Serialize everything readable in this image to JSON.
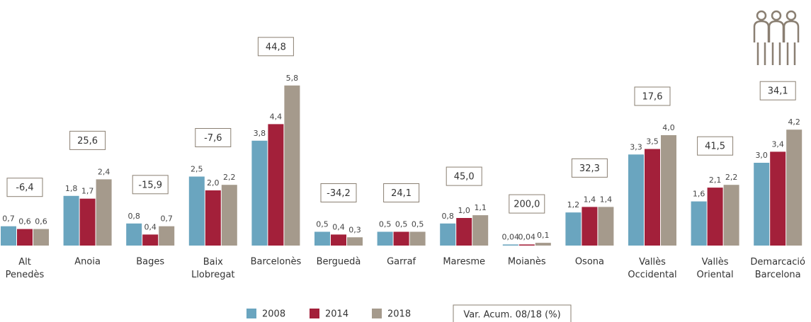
{
  "chart_data": {
    "type": "bar",
    "categories": [
      "Alt Penedès",
      "Anoia",
      "Bages",
      "Baix Llobregat",
      "Barcelonès",
      "Berguedà",
      "Garraf",
      "Maresme",
      "Moianès",
      "Osona",
      "Vallès Occidental",
      "Vallès Oriental",
      "Demarcació Barcelona"
    ],
    "series": [
      {
        "name": "2008",
        "color": "#6aa5bf",
        "values": [
          0.7,
          1.8,
          0.8,
          2.5,
          3.8,
          0.5,
          0.5,
          0.8,
          0.04,
          1.2,
          3.3,
          1.6,
          3.0
        ],
        "value_labels": [
          "0,7",
          "1,8",
          "0,8",
          "2,5",
          "3,8",
          "0,5",
          "0,5",
          "0,8",
          "0,04",
          "1,2",
          "3,3",
          "1,6",
          "3,0"
        ]
      },
      {
        "name": "2014",
        "color": "#a3203a",
        "values": [
          0.6,
          1.7,
          0.4,
          2.0,
          4.4,
          0.4,
          0.5,
          1.0,
          0.04,
          1.4,
          3.5,
          2.1,
          3.4
        ],
        "value_labels": [
          "0,6",
          "1,7",
          "0,4",
          "2,0",
          "4,4",
          "0,4",
          "0,5",
          "1,0",
          "0,04",
          "1,4",
          "3,5",
          "2,1",
          "3,4"
        ]
      },
      {
        "name": "2018",
        "color": "#a59a8c",
        "values": [
          0.6,
          2.4,
          0.7,
          2.2,
          5.8,
          0.3,
          0.5,
          1.1,
          0.1,
          1.4,
          4.0,
          2.2,
          4.2
        ],
        "value_labels": [
          "0,6",
          "2,4",
          "0,7",
          "2,2",
          "5,8",
          "0,3",
          "0,5",
          "1,1",
          "0,1",
          "1,4",
          "4,0",
          "2,2",
          "4,2"
        ]
      }
    ],
    "variation": {
      "name": "Var. Acum. 08/18 (%)",
      "values": [
        -6.4,
        25.6,
        -15.9,
        -7.6,
        44.8,
        -34.2,
        24.1,
        45.0,
        200.0,
        32.3,
        17.6,
        41.5,
        34.1
      ],
      "value_labels": [
        "-6,4",
        "25,6",
        "-15,9",
        "-7,6",
        "44,8",
        "-34,2",
        "24,1",
        "45,0",
        "200,0",
        "32,3",
        "17,6",
        "41,5",
        "34,1"
      ]
    }
  }
}
